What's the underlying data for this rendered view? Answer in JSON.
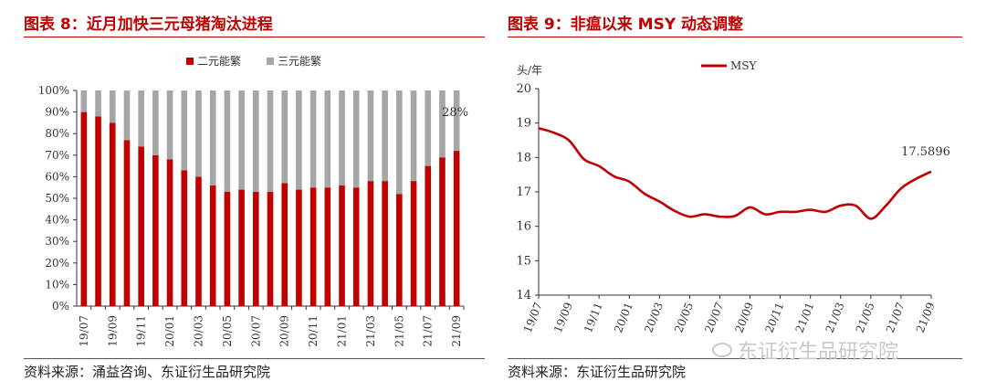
{
  "left": {
    "title": "图表 8：近月加快三元母猪淘汰进程",
    "source": "资料来源：涌益咨询、东证衍生品研究院"
  },
  "right": {
    "title": "图表 9：非瘟以来 MSY 动态调整",
    "source": "资料来源：东证衍生品研究院"
  },
  "watermark": "东证衍生品研究院",
  "colors": {
    "red": "#c00000",
    "gray": "#a6a6a6",
    "title_red": "#c00000"
  },
  "chart_data": [
    {
      "type": "bar",
      "stacked": true,
      "title": "近月加快三元母猪淘汰进程",
      "legend": [
        "二元能繁",
        "三元能繁"
      ],
      "legend_position": "top-center",
      "ylim": [
        0,
        100
      ],
      "yticks": [
        "0%",
        "10%",
        "20%",
        "30%",
        "40%",
        "50%",
        "60%",
        "70%",
        "80%",
        "90%",
        "100%"
      ],
      "categories": [
        "19/07",
        "19/08",
        "19/09",
        "19/10",
        "19/11",
        "19/12",
        "20/01",
        "20/02",
        "20/03",
        "20/04",
        "20/05",
        "20/06",
        "20/07",
        "20/08",
        "20/09",
        "20/10",
        "20/11",
        "20/12",
        "21/01",
        "21/02",
        "21/03",
        "21/04",
        "21/05",
        "21/06",
        "21/07",
        "21/08",
        "21/09"
      ],
      "xtick_labels": [
        "19/07",
        "19/09",
        "19/11",
        "20/01",
        "20/03",
        "20/05",
        "20/07",
        "20/09",
        "20/11",
        "21/01",
        "21/03",
        "21/05",
        "21/07",
        "21/09"
      ],
      "series": [
        {
          "name": "二元能繁",
          "values": [
            90,
            88,
            85,
            77,
            74,
            70,
            68,
            63,
            60,
            56,
            53,
            54,
            53,
            53,
            57,
            54,
            55,
            55,
            56,
            55,
            58,
            58,
            52,
            58,
            65,
            69,
            72
          ]
        },
        {
          "name": "三元能繁",
          "values": [
            10,
            12,
            15,
            23,
            26,
            30,
            32,
            37,
            40,
            44,
            47,
            46,
            47,
            47,
            43,
            46,
            45,
            45,
            44,
            45,
            42,
            42,
            48,
            42,
            35,
            31,
            28
          ]
        }
      ],
      "annotation": "28%"
    },
    {
      "type": "line",
      "title": "非瘟以来 MSY 动态调整",
      "ylabel": "头/年",
      "ylim": [
        14,
        20
      ],
      "yticks": [
        "14",
        "15",
        "16",
        "17",
        "18",
        "19",
        "20"
      ],
      "legend": [
        "MSY"
      ],
      "legend_position": "top-center",
      "x": [
        "19/07",
        "19/08",
        "19/09",
        "19/10",
        "19/11",
        "19/12",
        "20/01",
        "20/02",
        "20/03",
        "20/04",
        "20/05",
        "20/06",
        "20/07",
        "20/08",
        "20/09",
        "20/10",
        "20/11",
        "20/12",
        "21/01",
        "21/02",
        "21/03",
        "21/04",
        "21/05",
        "21/06",
        "21/07",
        "21/08",
        "21/09"
      ],
      "xtick_labels": [
        "19/07",
        "19/09",
        "19/11",
        "20/01",
        "20/03",
        "20/05",
        "20/07",
        "20/09",
        "20/11",
        "21/01",
        "21/03",
        "21/05",
        "21/07",
        "21/09"
      ],
      "series": [
        {
          "name": "MSY",
          "values": [
            18.85,
            18.72,
            18.5,
            17.95,
            17.75,
            17.45,
            17.3,
            16.95,
            16.72,
            16.45,
            16.28,
            16.35,
            16.28,
            16.3,
            16.55,
            16.35,
            16.42,
            16.42,
            16.48,
            16.42,
            16.6,
            16.6,
            16.22,
            16.6,
            17.1,
            17.38,
            17.59
          ]
        }
      ],
      "annotation": "17.5896"
    }
  ]
}
